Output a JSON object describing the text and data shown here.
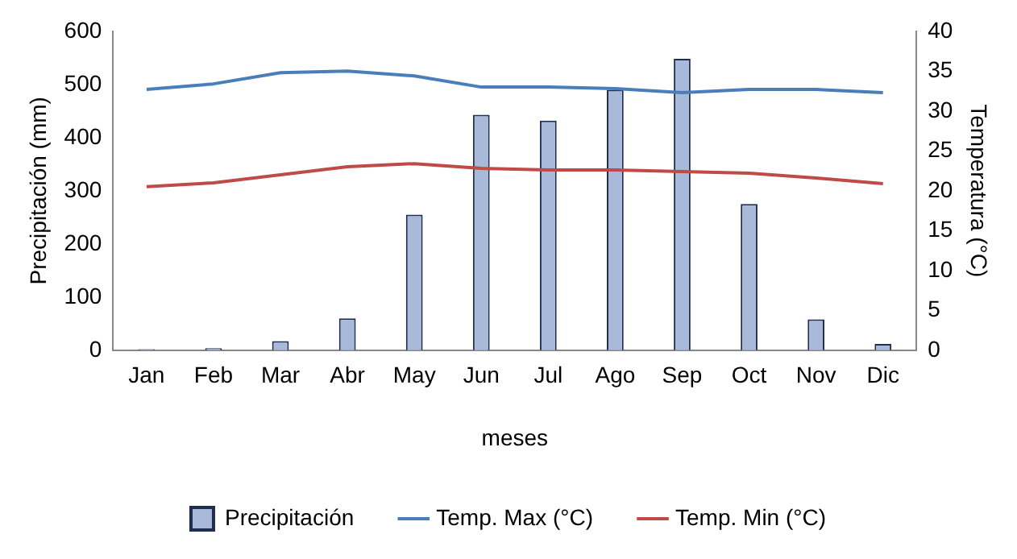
{
  "chart_data": {
    "type": "bar",
    "xlabel": "meses",
    "ylabel": "Precipitación (mm)",
    "y2label": "Temperatura (°C)",
    "categories": [
      "Jan",
      "Feb",
      "Mar",
      "Abr",
      "May",
      "Jun",
      "Jul",
      "Ago",
      "Sep",
      "Oct",
      "Nov",
      "Dic"
    ],
    "series": [
      {
        "name": "Precipitación",
        "color": "#a9b9d9",
        "values": [
          2,
          4,
          17,
          60,
          255,
          443,
          432,
          490,
          548,
          275,
          58,
          12
        ]
      },
      {
        "name": "Temp. Max (°C)",
        "type": "line",
        "axis": "y2",
        "color": "#4a7ebb",
        "values": [
          32.7,
          33.4,
          34.8,
          35,
          34.4,
          33,
          33,
          32.8,
          32.3,
          32.7,
          32.7,
          32.3
        ]
      },
      {
        "name": "Temp. Min (°C)",
        "type": "line",
        "axis": "y2",
        "color": "#be4b48",
        "values": [
          20.5,
          21,
          22,
          23,
          23.4,
          22.8,
          22.6,
          22.6,
          22.4,
          22.2,
          21.6,
          20.9
        ]
      }
    ],
    "ylim": [
      0,
      600
    ],
    "yticks": [
      0,
      100,
      200,
      300,
      400,
      500,
      600
    ],
    "y2lim": [
      0,
      40
    ],
    "y2ticks": [
      0,
      5,
      10,
      15,
      20,
      25,
      30,
      35,
      40
    ],
    "grid": false,
    "legend": "bottom",
    "marker": "none"
  }
}
